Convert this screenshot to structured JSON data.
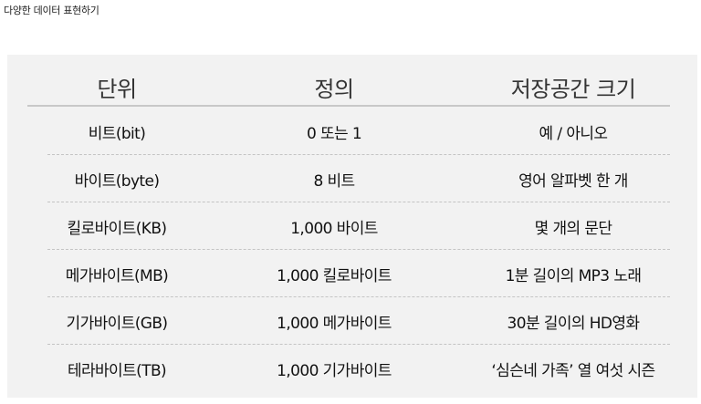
{
  "page": {
    "title": "다양한 데이터 표현하기"
  },
  "table": {
    "headers": [
      "단위",
      "정의",
      "저장공간 크기"
    ],
    "rows": [
      [
        "비트(bit)",
        "0 또는 1",
        "예 / 아니오"
      ],
      [
        "바이트(byte)",
        "8 비트",
        "영어 알파벳 한 개"
      ],
      [
        "킬로바이트(KB)",
        "1,000 바이트",
        "몇 개의 문단"
      ],
      [
        "메가바이트(MB)",
        "1,000 킬로바이트",
        "1분 길이의 MP3 노래"
      ],
      [
        "기가바이트(GB)",
        "1,000 메가바이트",
        "30분 길이의 HD영화"
      ],
      [
        "테라바이트(TB)",
        "1,000 기가바이트",
        "‘심슨네 가족’ 열 여섯 시즌"
      ]
    ]
  }
}
